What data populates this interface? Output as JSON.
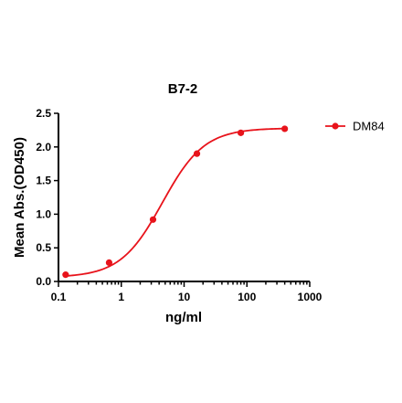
{
  "chart_data": {
    "type": "line",
    "title": "B7-2",
    "xlabel": "ng/ml",
    "ylabel": "Mean Abs.(OD450)",
    "x_scale": "log",
    "xlim": [
      0.1,
      1000
    ],
    "ylim": [
      0.0,
      2.5
    ],
    "x_ticks": [
      0.1,
      1,
      10,
      100,
      1000
    ],
    "x_tick_labels": [
      "0.1",
      "1",
      "10",
      "100",
      "1000"
    ],
    "y_ticks": [
      0.0,
      0.5,
      1.0,
      1.5,
      2.0,
      2.5
    ],
    "y_tick_labels": [
      "0.0",
      "0.5",
      "1.0",
      "1.5",
      "2.0",
      "2.5"
    ],
    "grid": false,
    "legend_position": "top-right",
    "series": [
      {
        "name": "DM84",
        "color": "#e8131b",
        "marker": "circle",
        "x": [
          0.13,
          0.64,
          3.2,
          16,
          80,
          400
        ],
        "y": [
          0.1,
          0.28,
          0.92,
          1.9,
          2.21,
          2.27
        ]
      }
    ],
    "fit_curve": {
      "model": "4PL",
      "bottom": 0.06,
      "top": 2.28,
      "ec50": 4.5,
      "hill": 1.3
    }
  }
}
